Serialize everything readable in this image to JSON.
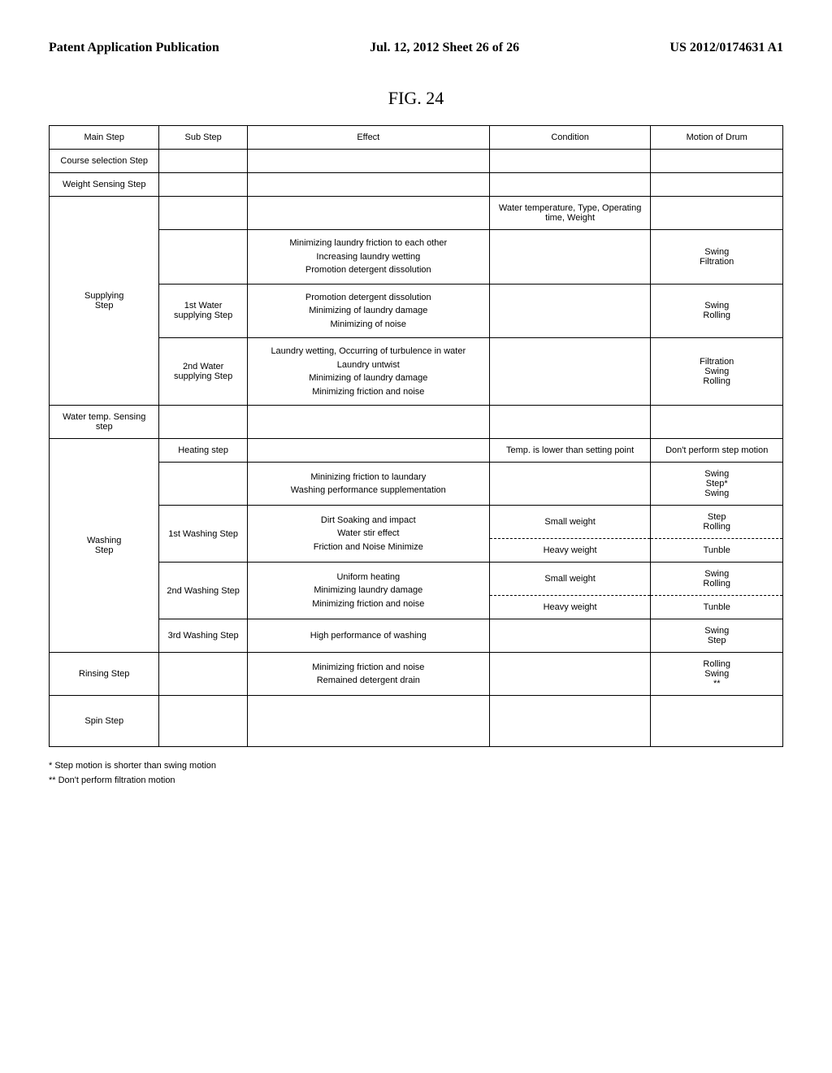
{
  "header": {
    "left": "Patent Application Publication",
    "center": "Jul. 12, 2012  Sheet 26 of 26",
    "right": "US 2012/0174631 A1"
  },
  "figure_caption": "FIG. 24",
  "columns": {
    "c0": "Main Step",
    "c1": "Sub Step",
    "c2": "Effect",
    "c3": "Condition",
    "c4": "Motion of Drum"
  },
  "rows": {
    "course_selection": "Course selection Step",
    "weight_sensing": "Weight Sensing Step",
    "supplying": {
      "main": "Supplying\nStep",
      "row1_condition": "Water temperature, Type, Operating time, Weight",
      "row2_effect": "Minimizing laundry friction to each other\nIncreasing laundry wetting\nPromotion detergent dissolution",
      "row2_motion": "Swing\nFiltration",
      "row3_sub": "1st Water supplying Step",
      "row3_effect": "Promotion detergent dissolution\nMinimizing of laundry damage\nMinimizing of noise",
      "row3_motion": "Swing\nRolling",
      "row4_sub": "2nd Water supplying Step",
      "row4_effect": "Laundry wetting, Occurring of turbulence in water\nLaundry untwist\nMinimizing of laundry damage\nMinimizing friction and noise",
      "row4_motion": "Filtration\nSwing\nRolling"
    },
    "water_temp": "Water temp. Sensing step",
    "washing": {
      "heating_sub": "Heating step",
      "heating_condition": "Temp. is lower than setting point",
      "heating_motion": "Don't perform step motion",
      "main": "Washing\nStep",
      "row1_effect": "Mininizing friction to laundary\nWashing performance supplementation",
      "row1_motion": "Swing\nStep*\nSwing",
      "first_sub": "1st Washing Step",
      "first_effect": "Dirt Soaking and impact\nWater stir effect\nFriction and Noise Minimize",
      "first_cond_small": "Small weight",
      "first_motion_small": "Step\nRolling",
      "first_cond_heavy": "Heavy weight",
      "first_motion_heavy": "Tunble",
      "second_sub": "2nd Washing Step",
      "second_effect": "Uniform heating\nMinimizing laundry damage\nMinimizing friction and noise",
      "second_cond_small": "Small weight",
      "second_motion_small": "Swing\nRolling",
      "second_cond_heavy": "Heavy weight",
      "second_motion_heavy": "Tunble",
      "third_sub": "3rd Washing Step",
      "third_effect": "High performance of washing",
      "third_motion": "Swing\nStep"
    },
    "rinsing": {
      "main": "Rinsing Step",
      "effect": "Minimizing friction and noise\nRemained detergent drain",
      "motion": "Rolling\nSwing\n**"
    },
    "spin": "Spin Step"
  },
  "footnotes": {
    "f1": "* Step motion is shorter than swing motion",
    "f2": "** Don't perform filtration motion"
  }
}
